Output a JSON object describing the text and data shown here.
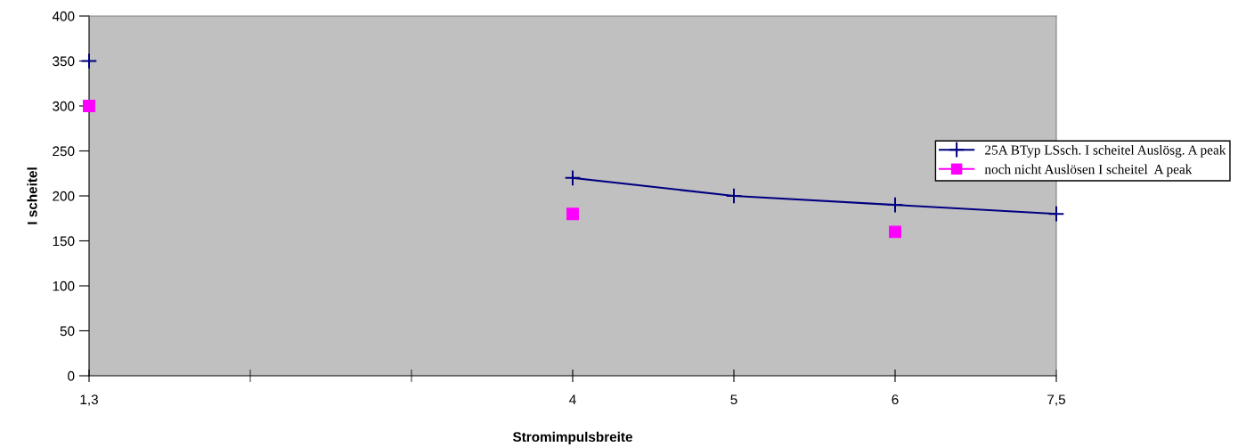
{
  "chart_data": {
    "type": "line",
    "xlabel": "Stromimpulsbreite",
    "ylabel": "I scheitel",
    "categories": [
      "1,3",
      null,
      null,
      "4",
      "5",
      "6",
      "7,5"
    ],
    "series": [
      {
        "name": "25A BTyp LSsch. I scheitel Auslösg. A peak",
        "color": "#000080",
        "marker": "cross",
        "line_style": "solid",
        "values": [
          350,
          null,
          null,
          220,
          200,
          190,
          180
        ]
      },
      {
        "name": "noch nicht Auslösen I scheitel  A peak",
        "type": "scatter",
        "color": "#ff00ff",
        "marker": "square",
        "values": [
          300,
          null,
          null,
          180,
          null,
          160,
          null
        ]
      }
    ],
    "ylim": [
      0,
      400
    ],
    "yticks": [
      0,
      50,
      100,
      150,
      200,
      250,
      300,
      350,
      400
    ],
    "grid": false,
    "legend": "right"
  }
}
